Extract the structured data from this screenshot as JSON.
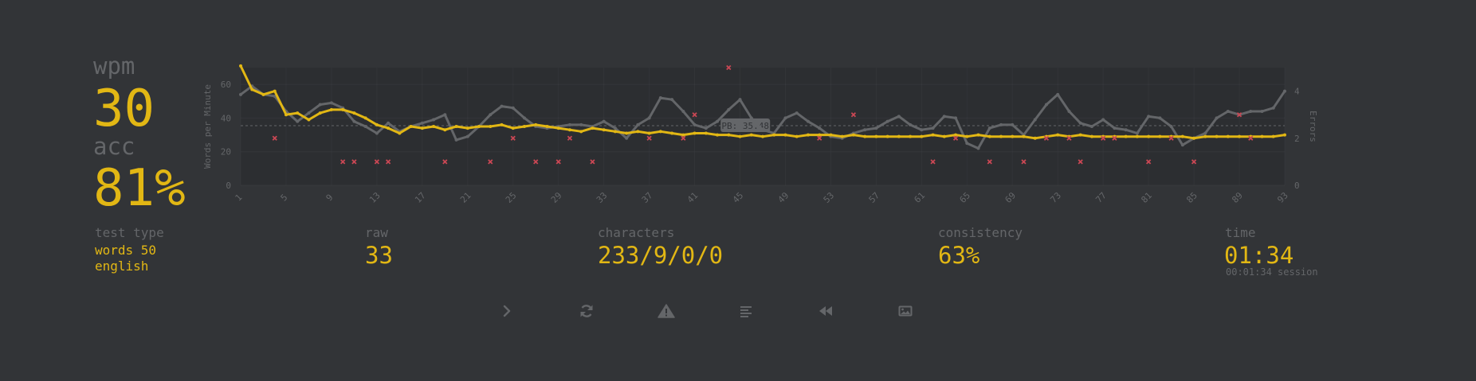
{
  "stats": {
    "wpm_label": "wpm",
    "wpm_value": "30",
    "acc_label": "acc",
    "acc_value": "81%"
  },
  "details": {
    "test_type_label": "test type",
    "test_type_lines": [
      "words 50",
      "english"
    ],
    "raw_label": "raw",
    "raw_value": "33",
    "characters_label": "characters",
    "characters_value": "233/9/0/0",
    "consistency_label": "consistency",
    "consistency_value": "63%",
    "time_label": "time",
    "time_value": "01:34",
    "session_time": "00:01:34 session"
  },
  "buttons": [
    {
      "name": "next-test-button",
      "icon": "chevron-right-icon"
    },
    {
      "name": "restart-test-button",
      "icon": "refresh-icon"
    },
    {
      "name": "report-problem-button",
      "icon": "warning-icon"
    },
    {
      "name": "word-history-button",
      "icon": "align-left-icon"
    },
    {
      "name": "watch-replay-button",
      "icon": "backward-icon"
    },
    {
      "name": "save-screenshot-button",
      "icon": "image-icon"
    }
  ],
  "colors": {
    "background": "#323437",
    "accent": "#e2b714",
    "sub": "#646669",
    "error": "#ca4754",
    "raw_line": "#646669"
  },
  "chart_data": {
    "type": "line",
    "x_tick_labels": [
      "1",
      "5",
      "9",
      "13",
      "17",
      "21",
      "25",
      "29",
      "33",
      "37",
      "41",
      "45",
      "49",
      "53",
      "57",
      "61",
      "65",
      "69",
      "73",
      "77",
      "81",
      "85",
      "89",
      "93"
    ],
    "x_range": [
      1,
      93
    ],
    "y_left_label": "Words per Minute",
    "y_left_ticks": [
      "0",
      "20",
      "40",
      "60"
    ],
    "y_left_range": [
      0,
      70
    ],
    "y_right_label": "Errors",
    "y_right_ticks": [
      "0",
      "2",
      "4"
    ],
    "y_right_range": [
      0,
      5
    ],
    "pb_line": {
      "value": 35.48,
      "label": "PB: 35.48"
    },
    "series": [
      {
        "name": "wpm",
        "color": "#e2b714",
        "values": [
          71,
          57,
          54,
          56,
          42,
          43,
          39,
          43,
          45,
          45,
          43,
          40,
          36,
          34,
          31,
          35,
          34,
          35,
          33,
          35,
          34,
          35,
          35,
          36,
          34,
          35,
          36,
          35,
          34,
          33,
          32,
          34,
          33,
          32,
          31,
          32,
          31,
          32,
          31,
          30,
          31,
          31,
          30,
          30,
          29,
          30,
          29,
          30,
          30,
          29,
          30,
          30,
          30,
          29,
          30,
          29,
          29,
          29,
          29,
          29,
          29,
          30,
          29,
          30,
          29,
          30,
          29,
          29,
          29,
          29,
          28,
          29,
          30,
          29,
          30,
          29,
          29,
          29,
          29,
          29,
          29,
          29,
          29,
          29,
          28,
          29,
          29,
          29,
          29,
          29,
          29,
          29,
          30
        ]
      },
      {
        "name": "raw",
        "color": "#646669",
        "values": [
          54,
          59,
          54,
          53,
          44,
          38,
          43,
          48,
          49,
          46,
          38,
          35,
          31,
          37,
          32,
          35,
          37,
          39,
          42,
          27,
          29,
          35,
          42,
          47,
          46,
          40,
          35,
          34,
          35,
          36,
          36,
          35,
          38,
          34,
          28,
          36,
          40,
          52,
          51,
          44,
          36,
          34,
          38,
          45,
          51,
          40,
          33,
          31,
          40,
          43,
          38,
          34,
          29,
          28,
          31,
          33,
          34,
          38,
          41,
          36,
          33,
          34,
          41,
          40,
          25,
          22,
          34,
          36,
          36,
          30,
          39,
          48,
          54,
          44,
          37,
          35,
          39,
          34,
          33,
          31,
          41,
          40,
          35,
          24,
          28,
          31,
          40,
          44,
          42,
          44,
          44,
          46,
          56
        ]
      },
      {
        "name": "errors",
        "color": "#ca4754",
        "points": [
          [
            4,
            2
          ],
          [
            10,
            1
          ],
          [
            11,
            1
          ],
          [
            13,
            1
          ],
          [
            14,
            1
          ],
          [
            19,
            1
          ],
          [
            23,
            1
          ],
          [
            25,
            2
          ],
          [
            27,
            1
          ],
          [
            29,
            1
          ],
          [
            30,
            2
          ],
          [
            32,
            1
          ],
          [
            37,
            2
          ],
          [
            40,
            2
          ],
          [
            41,
            3
          ],
          [
            44,
            5
          ],
          [
            52,
            2
          ],
          [
            55,
            3
          ],
          [
            62,
            1
          ],
          [
            64,
            2
          ],
          [
            67,
            1
          ],
          [
            70,
            1
          ],
          [
            72,
            2
          ],
          [
            74,
            2
          ],
          [
            75,
            1
          ],
          [
            77,
            2
          ],
          [
            78,
            2
          ],
          [
            81,
            1
          ],
          [
            83,
            2
          ],
          [
            85,
            1
          ],
          [
            89,
            3
          ],
          [
            90,
            2
          ]
        ]
      }
    ]
  }
}
